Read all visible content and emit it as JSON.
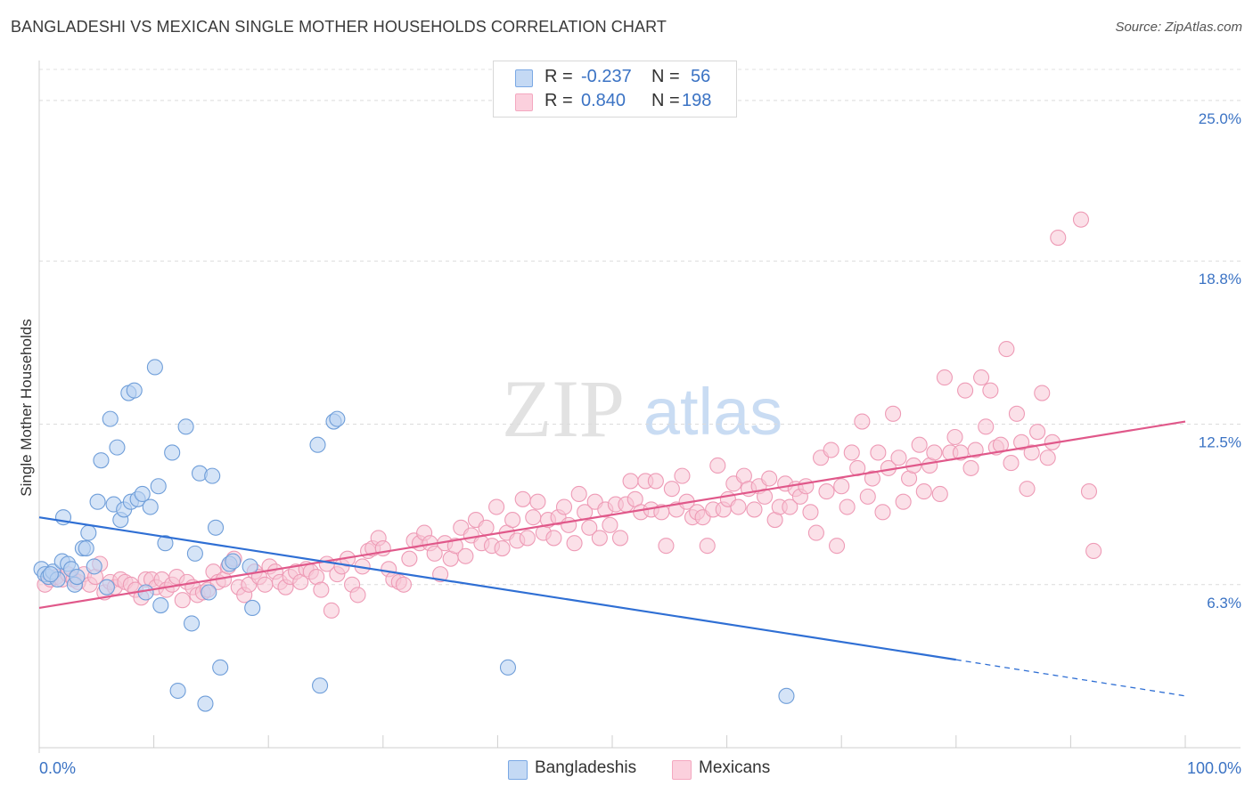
{
  "title": "BANGLADESHI VS MEXICAN SINGLE MOTHER HOUSEHOLDS CORRELATION CHART",
  "source": "Source: ZipAtlas.com",
  "watermark": {
    "zip": "ZIP",
    "atlas": "atlas"
  },
  "legend": {
    "rows": [
      {
        "r_label": "R =",
        "r_value": "-0.237",
        "n_label": "N =",
        "n_value": "56",
        "color": "#a9c8ef",
        "stroke": "#4f86d0"
      },
      {
        "r_label": "R =",
        "r_value": "0.840",
        "n_label": "N =",
        "n_value": "198",
        "color": "#f7b9cb",
        "stroke": "#e5709b"
      }
    ]
  },
  "bottom_legend": {
    "items": [
      "Bangladeshis",
      "Mexicans"
    ]
  },
  "chart_data": {
    "type": "scatter",
    "title": "BANGLADESHI VS MEXICAN SINGLE MOTHER HOUSEHOLDS CORRELATION CHART",
    "xlabel": "",
    "ylabel": "Single Mother Households",
    "x_tick_labels": [
      "0.0%",
      "100.0%"
    ],
    "y_tick_labels": [
      "6.3%",
      "12.5%",
      "18.8%",
      "25.0%"
    ],
    "y_ticks": [
      6.3,
      12.5,
      18.8,
      25.0
    ],
    "xlim": [
      0,
      100
    ],
    "ylim": [
      0,
      26.2
    ],
    "grid": "horizontal dashed",
    "series": [
      {
        "name": "Bangladeshis",
        "color": "#7aa8e4",
        "line_color": "#2f6fd4",
        "trend": {
          "x0": 0,
          "y0": 8.9,
          "x1": 80,
          "y1": 3.4,
          "dash_x1": 100,
          "dash_y1": 2.0
        },
        "points": [
          [
            0.2,
            6.9
          ],
          [
            0.5,
            6.7
          ],
          [
            0.8,
            6.6
          ],
          [
            1.2,
            6.8
          ],
          [
            1.6,
            6.5
          ],
          [
            2.0,
            7.2
          ],
          [
            2.1,
            8.9
          ],
          [
            2.5,
            7.1
          ],
          [
            2.8,
            6.9
          ],
          [
            3.1,
            6.3
          ],
          [
            3.3,
            6.6
          ],
          [
            3.8,
            7.7
          ],
          [
            4.1,
            7.7
          ],
          [
            4.3,
            8.3
          ],
          [
            4.8,
            7.0
          ],
          [
            5.1,
            9.5
          ],
          [
            5.4,
            11.1
          ],
          [
            5.9,
            6.2
          ],
          [
            6.2,
            12.7
          ],
          [
            6.5,
            9.4
          ],
          [
            6.8,
            11.6
          ],
          [
            7.1,
            8.8
          ],
          [
            7.4,
            9.2
          ],
          [
            7.8,
            13.7
          ],
          [
            8.0,
            9.5
          ],
          [
            8.3,
            13.8
          ],
          [
            8.6,
            9.6
          ],
          [
            9.0,
            9.8
          ],
          [
            9.3,
            6.0
          ],
          [
            9.7,
            9.3
          ],
          [
            10.1,
            14.7
          ],
          [
            10.4,
            10.1
          ],
          [
            10.6,
            5.5
          ],
          [
            11.0,
            7.9
          ],
          [
            11.6,
            11.4
          ],
          [
            12.1,
            2.2
          ],
          [
            12.8,
            12.4
          ],
          [
            13.3,
            4.8
          ],
          [
            13.6,
            7.5
          ],
          [
            14.0,
            10.6
          ],
          [
            14.5,
            1.7
          ],
          [
            14.8,
            6.0
          ],
          [
            15.1,
            10.5
          ],
          [
            15.4,
            8.5
          ],
          [
            15.8,
            3.1
          ],
          [
            16.6,
            7.1
          ],
          [
            16.9,
            7.2
          ],
          [
            18.4,
            7.0
          ],
          [
            18.6,
            5.4
          ],
          [
            24.3,
            11.7
          ],
          [
            24.5,
            2.4
          ],
          [
            25.7,
            12.6
          ],
          [
            26.0,
            12.7
          ],
          [
            40.9,
            3.1
          ],
          [
            65.2,
            2.0
          ],
          [
            1.0,
            6.7
          ]
        ]
      },
      {
        "name": "Mexicans",
        "color": "#f4a8c0",
        "line_color": "#e0588a",
        "trend": {
          "x0": 0,
          "y0": 5.4,
          "x1": 100,
          "y1": 12.6
        },
        "points": [
          [
            0.5,
            6.3
          ],
          [
            1.0,
            6.5
          ],
          [
            1.5,
            6.6
          ],
          [
            2.0,
            6.5
          ],
          [
            2.5,
            6.7
          ],
          [
            3.0,
            6.5
          ],
          [
            3.4,
            6.4
          ],
          [
            3.9,
            6.7
          ],
          [
            4.4,
            6.3
          ],
          [
            4.9,
            6.6
          ],
          [
            5.3,
            7.1
          ],
          [
            5.7,
            6.0
          ],
          [
            6.2,
            6.4
          ],
          [
            6.6,
            6.2
          ],
          [
            7.1,
            6.5
          ],
          [
            7.5,
            6.4
          ],
          [
            8.0,
            6.3
          ],
          [
            8.4,
            6.1
          ],
          [
            8.9,
            5.8
          ],
          [
            9.3,
            6.5
          ],
          [
            9.8,
            6.5
          ],
          [
            10.2,
            6.2
          ],
          [
            10.7,
            6.5
          ],
          [
            11.1,
            6.1
          ],
          [
            11.6,
            6.3
          ],
          [
            12.0,
            6.6
          ],
          [
            12.5,
            5.7
          ],
          [
            12.9,
            6.4
          ],
          [
            13.4,
            6.2
          ],
          [
            13.8,
            5.9
          ],
          [
            14.3,
            6.0
          ],
          [
            14.7,
            6.1
          ],
          [
            15.2,
            6.8
          ],
          [
            15.6,
            6.4
          ],
          [
            16.1,
            6.5
          ],
          [
            16.5,
            7.0
          ],
          [
            17.0,
            7.3
          ],
          [
            17.4,
            6.2
          ],
          [
            17.9,
            5.9
          ],
          [
            18.3,
            6.3
          ],
          [
            18.8,
            6.8
          ],
          [
            19.2,
            6.6
          ],
          [
            19.7,
            6.3
          ],
          [
            20.1,
            7.0
          ],
          [
            20.6,
            6.8
          ],
          [
            21.0,
            6.4
          ],
          [
            21.5,
            6.2
          ],
          [
            21.9,
            6.6
          ],
          [
            22.4,
            6.8
          ],
          [
            22.8,
            6.4
          ],
          [
            23.3,
            6.9
          ],
          [
            23.7,
            6.8
          ],
          [
            24.2,
            6.6
          ],
          [
            24.6,
            6.1
          ],
          [
            25.1,
            7.1
          ],
          [
            25.5,
            5.3
          ],
          [
            26.0,
            6.7
          ],
          [
            26.4,
            7.0
          ],
          [
            26.9,
            7.3
          ],
          [
            27.3,
            6.3
          ],
          [
            27.8,
            5.9
          ],
          [
            28.2,
            7.0
          ],
          [
            28.7,
            7.6
          ],
          [
            29.1,
            7.7
          ],
          [
            29.6,
            8.1
          ],
          [
            30.0,
            7.7
          ],
          [
            30.5,
            6.9
          ],
          [
            30.9,
            6.5
          ],
          [
            31.4,
            6.4
          ],
          [
            31.8,
            6.3
          ],
          [
            32.3,
            7.3
          ],
          [
            32.7,
            8.0
          ],
          [
            33.2,
            7.9
          ],
          [
            33.6,
            8.3
          ],
          [
            34.1,
            7.9
          ],
          [
            34.5,
            7.5
          ],
          [
            35.0,
            6.7
          ],
          [
            35.4,
            7.9
          ],
          [
            35.9,
            7.3
          ],
          [
            36.3,
            7.8
          ],
          [
            36.8,
            8.5
          ],
          [
            37.2,
            7.4
          ],
          [
            37.7,
            8.2
          ],
          [
            38.1,
            8.8
          ],
          [
            38.6,
            7.9
          ],
          [
            39.0,
            8.5
          ],
          [
            39.5,
            7.8
          ],
          [
            39.9,
            9.3
          ],
          [
            40.4,
            7.7
          ],
          [
            40.8,
            8.3
          ],
          [
            41.3,
            8.8
          ],
          [
            41.7,
            8.0
          ],
          [
            42.2,
            9.6
          ],
          [
            42.6,
            8.1
          ],
          [
            43.1,
            8.9
          ],
          [
            43.5,
            9.5
          ],
          [
            44.0,
            8.3
          ],
          [
            44.4,
            8.8
          ],
          [
            44.9,
            8.1
          ],
          [
            45.3,
            8.9
          ],
          [
            45.8,
            9.3
          ],
          [
            46.2,
            8.6
          ],
          [
            46.7,
            7.9
          ],
          [
            47.1,
            9.8
          ],
          [
            47.6,
            9.1
          ],
          [
            48.0,
            8.5
          ],
          [
            48.5,
            9.5
          ],
          [
            48.9,
            8.1
          ],
          [
            49.4,
            9.2
          ],
          [
            49.8,
            8.6
          ],
          [
            50.3,
            9.4
          ],
          [
            50.7,
            8.1
          ],
          [
            51.2,
            9.4
          ],
          [
            51.6,
            10.3
          ],
          [
            52.0,
            9.6
          ],
          [
            52.5,
            9.1
          ],
          [
            52.9,
            10.3
          ],
          [
            53.4,
            9.2
          ],
          [
            53.8,
            10.3
          ],
          [
            54.3,
            9.1
          ],
          [
            54.7,
            7.8
          ],
          [
            55.2,
            10.0
          ],
          [
            55.6,
            9.2
          ],
          [
            56.1,
            10.5
          ],
          [
            56.5,
            9.5
          ],
          [
            57.0,
            8.9
          ],
          [
            57.4,
            9.1
          ],
          [
            57.9,
            8.9
          ],
          [
            58.3,
            7.8
          ],
          [
            58.8,
            9.2
          ],
          [
            59.2,
            10.9
          ],
          [
            59.7,
            9.2
          ],
          [
            60.1,
            9.6
          ],
          [
            60.6,
            10.2
          ],
          [
            61.0,
            9.3
          ],
          [
            61.5,
            10.5
          ],
          [
            61.9,
            10.0
          ],
          [
            62.4,
            9.2
          ],
          [
            62.8,
            10.1
          ],
          [
            63.3,
            9.7
          ],
          [
            63.7,
            10.4
          ],
          [
            64.2,
            8.8
          ],
          [
            64.6,
            9.3
          ],
          [
            65.1,
            10.2
          ],
          [
            65.5,
            9.3
          ],
          [
            66.0,
            10.0
          ],
          [
            66.4,
            9.7
          ],
          [
            66.9,
            10.1
          ],
          [
            67.3,
            9.1
          ],
          [
            67.8,
            8.3
          ],
          [
            68.2,
            11.2
          ],
          [
            68.7,
            9.9
          ],
          [
            69.1,
            11.5
          ],
          [
            69.6,
            7.8
          ],
          [
            70.0,
            10.1
          ],
          [
            70.5,
            9.3
          ],
          [
            70.9,
            11.4
          ],
          [
            71.4,
            10.8
          ],
          [
            71.8,
            12.6
          ],
          [
            72.3,
            9.7
          ],
          [
            72.7,
            10.4
          ],
          [
            73.2,
            11.4
          ],
          [
            73.6,
            9.1
          ],
          [
            74.1,
            10.8
          ],
          [
            74.5,
            12.9
          ],
          [
            75.0,
            11.2
          ],
          [
            75.4,
            9.5
          ],
          [
            75.9,
            10.4
          ],
          [
            76.3,
            10.9
          ],
          [
            76.8,
            11.7
          ],
          [
            77.2,
            9.9
          ],
          [
            77.7,
            10.9
          ],
          [
            78.1,
            11.4
          ],
          [
            78.6,
            9.8
          ],
          [
            79.0,
            14.3
          ],
          [
            79.5,
            11.4
          ],
          [
            79.9,
            12.0
          ],
          [
            80.4,
            11.4
          ],
          [
            80.8,
            13.8
          ],
          [
            81.3,
            10.8
          ],
          [
            81.7,
            11.5
          ],
          [
            82.2,
            14.3
          ],
          [
            82.6,
            12.4
          ],
          [
            83.0,
            13.8
          ],
          [
            83.5,
            11.6
          ],
          [
            83.9,
            11.7
          ],
          [
            84.4,
            15.4
          ],
          [
            84.8,
            11.0
          ],
          [
            85.3,
            12.9
          ],
          [
            85.7,
            11.8
          ],
          [
            86.2,
            10.0
          ],
          [
            86.6,
            11.4
          ],
          [
            87.1,
            12.2
          ],
          [
            87.5,
            13.7
          ],
          [
            88.0,
            11.2
          ],
          [
            88.4,
            11.8
          ],
          [
            88.9,
            19.7
          ],
          [
            90.9,
            20.4
          ],
          [
            91.6,
            9.9
          ],
          [
            92.0,
            7.6
          ]
        ]
      }
    ]
  }
}
